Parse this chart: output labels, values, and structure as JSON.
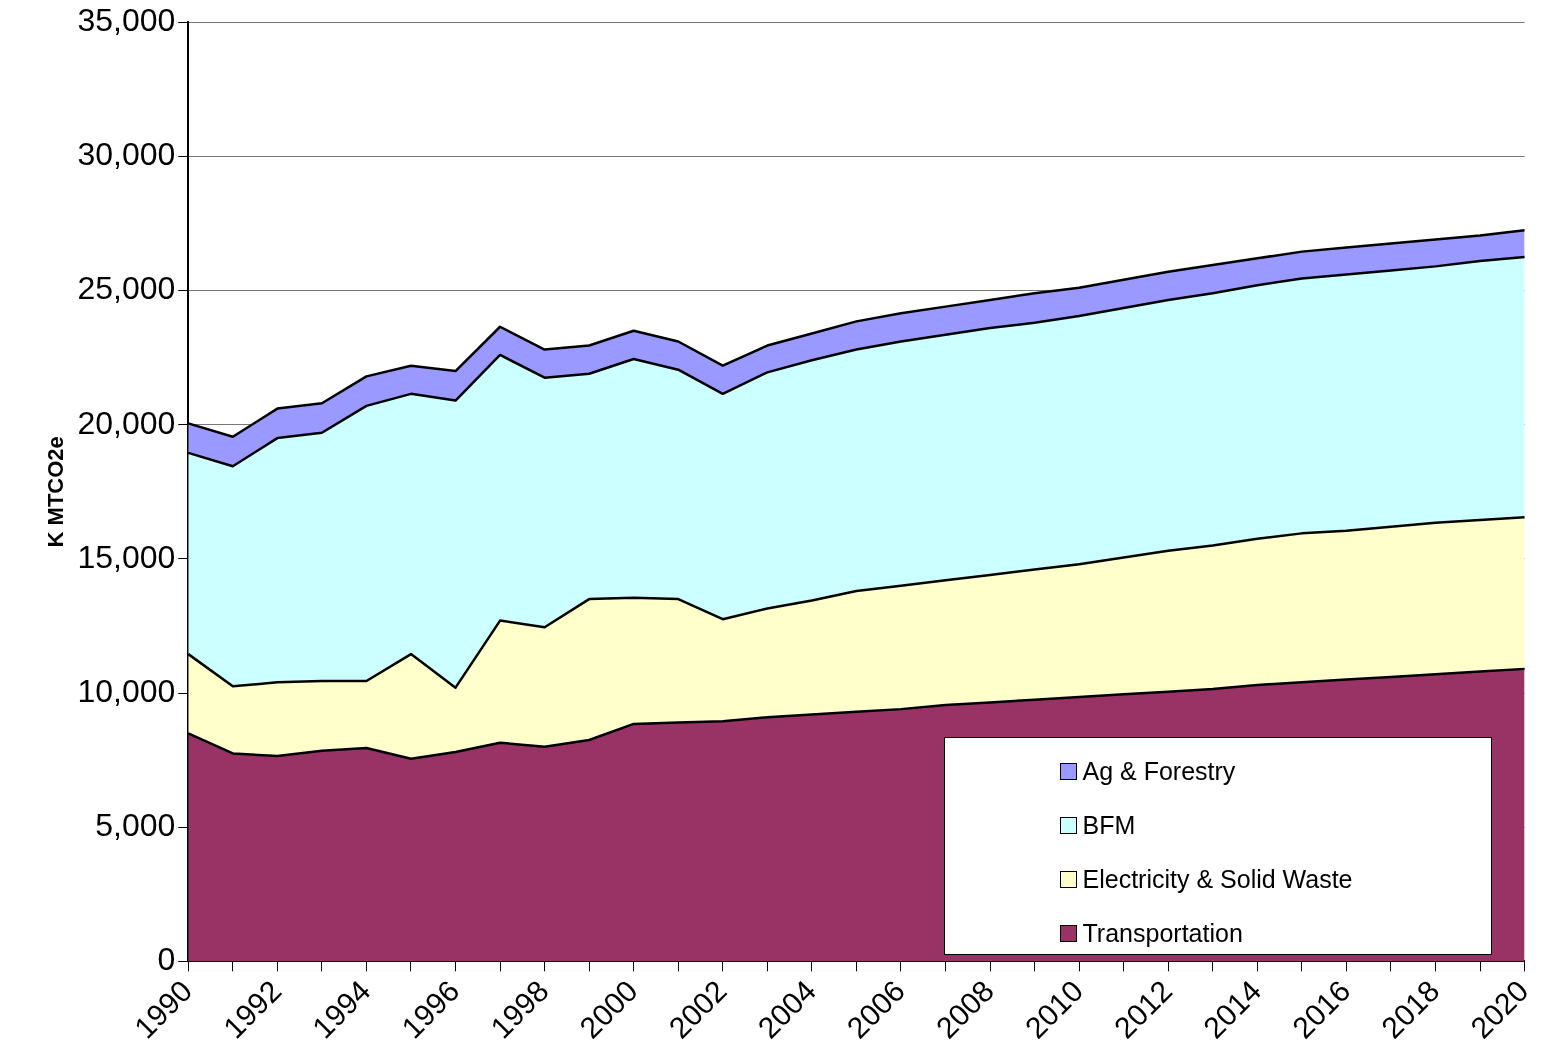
{
  "chart_data": {
    "type": "area",
    "stacked": true,
    "ylabel": "K MTCO2e",
    "categories": [
      "1990",
      null,
      "1992",
      null,
      "1994",
      null,
      "1996",
      null,
      "1998",
      null,
      "2000",
      null,
      "2002",
      null,
      "2004",
      null,
      "2006",
      null,
      "2008",
      null,
      "2010",
      null,
      "2012",
      null,
      "2014",
      null,
      "2016",
      null,
      "2018",
      null,
      "2020"
    ],
    "series": [
      {
        "name": "Transportation",
        "color": "#993366",
        "values": [
          8500,
          7750,
          7650,
          7850,
          7950,
          7550,
          7800,
          8150,
          8000,
          8250,
          8850,
          8900,
          8950,
          9100,
          9200,
          9300,
          9400,
          9550,
          9650,
          9750,
          9850,
          9950,
          10050,
          10150,
          10300,
          10400,
          10500,
          10600,
          10700,
          10800,
          10900
        ]
      },
      {
        "name": "Electricity & Solid Waste",
        "color": "#ffffcc",
        "values": [
          2950,
          2500,
          2750,
          2600,
          2500,
          3900,
          2400,
          4550,
          4450,
          5250,
          4700,
          4600,
          3800,
          4050,
          4250,
          4500,
          4600,
          4650,
          4750,
          4850,
          4950,
          5100,
          5250,
          5350,
          5450,
          5550,
          5550,
          5600,
          5650,
          5650,
          5650
        ]
      },
      {
        "name": "BFM",
        "color": "#ccffff",
        "values": [
          7500,
          8200,
          9100,
          9250,
          10250,
          9700,
          10700,
          9900,
          9300,
          8400,
          8900,
          8550,
          8400,
          8800,
          8950,
          9000,
          9100,
          9150,
          9200,
          9200,
          9250,
          9300,
          9350,
          9400,
          9450,
          9500,
          9550,
          9550,
          9550,
          9650,
          9700
        ]
      },
      {
        "name": "Ag & Forestry",
        "color": "#9999ff",
        "values": [
          1100,
          1100,
          1100,
          1100,
          1100,
          1050,
          1100,
          1050,
          1050,
          1050,
          1050,
          1050,
          1050,
          1000,
          1000,
          1050,
          1050,
          1050,
          1050,
          1100,
          1050,
          1050,
          1050,
          1050,
          1000,
          1000,
          1000,
          1000,
          1000,
          950,
          1000
        ]
      }
    ],
    "ylim": [
      0,
      35000
    ],
    "yticks": [
      {
        "value": 0,
        "label": "0"
      },
      {
        "value": 5000,
        "label": "5,000"
      },
      {
        "value": 10000,
        "label": "10,000"
      },
      {
        "value": 15000,
        "label": "15,000"
      },
      {
        "value": 20000,
        "label": "20,000"
      },
      {
        "value": 25000,
        "label": "25,000"
      },
      {
        "value": 30000,
        "label": "30,000"
      },
      {
        "value": 35000,
        "label": "35,000"
      }
    ],
    "grid": "y",
    "legend": "bottom right"
  }
}
